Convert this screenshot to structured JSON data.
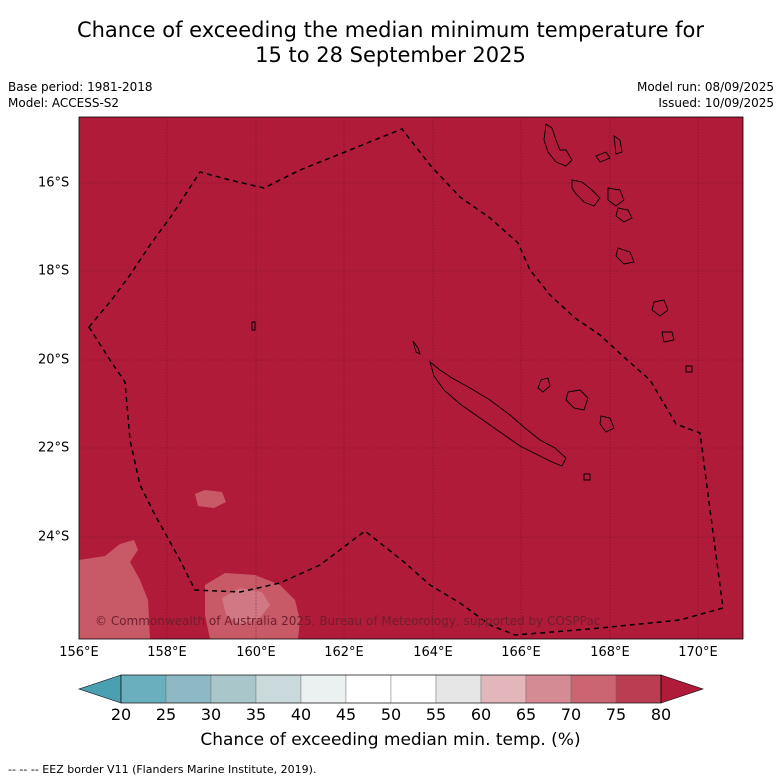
{
  "title_line1": "Chance of exceeding the median minimum temperature for",
  "title_line2": "15 to 28 September 2025",
  "meta": {
    "base_period": "Base period: 1981-2018",
    "model": "Model: ACCESS-S2",
    "model_run": "Model run: 08/09/2025",
    "issued": "Issued: 10/09/2025"
  },
  "map": {
    "lon_labels": [
      "156°E",
      "158°E",
      "160°E",
      "162°E",
      "164°E",
      "166°E",
      "168°E",
      "170°E"
    ],
    "lat_labels": [
      "16°S",
      "18°S",
      "20°S",
      "22°S",
      "24°S"
    ],
    "background_color": "#b11b3a",
    "copyright": "© Commonwealth of Australia 2025, Bureau of Meteorology, supported by COSPPac"
  },
  "colorbar": {
    "tick_labels": [
      "20",
      "25",
      "30",
      "35",
      "40",
      "45",
      "50",
      "55",
      "60",
      "65",
      "70",
      "75",
      "80"
    ],
    "colors": [
      "#4aa0b0",
      "#6aafbd",
      "#8cb9c3",
      "#a9c7cb",
      "#c9d9dc",
      "#ebf0f1",
      "#ffffff",
      "#ffffff",
      "#e7e6e6",
      "#e2b6bb",
      "#d58b93",
      "#c96470",
      "#bb3d51",
      "#b11b3a"
    ],
    "label": "Chance of exceeding median min. temp. (%)"
  },
  "footnote": "--  --  -- EEZ border V11 (Flanders Marine Institute, 2019)."
}
